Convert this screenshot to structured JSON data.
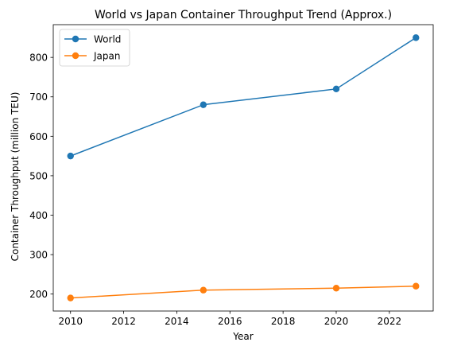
{
  "chart_data": {
    "type": "line",
    "title": "World vs Japan Container Throughput Trend (Approx.)",
    "xlabel": "Year",
    "ylabel": "Container Throughput (million TEU)",
    "x": [
      2010,
      2015,
      2020,
      2023
    ],
    "series": [
      {
        "name": "World",
        "values": [
          550,
          680,
          720,
          850
        ],
        "color": "#1f77b4",
        "marker": "circle"
      },
      {
        "name": "Japan",
        "values": [
          190,
          210,
          215,
          220
        ],
        "color": "#ff7f0e",
        "marker": "circle"
      }
    ],
    "xlim": [
      2009.35,
      2023.65
    ],
    "ylim": [
      157,
      883
    ],
    "xticks": [
      2010,
      2012,
      2014,
      2016,
      2018,
      2020,
      2022
    ],
    "yticks": [
      200,
      300,
      400,
      500,
      600,
      700,
      800
    ],
    "grid": false,
    "legend_position": "top-left"
  }
}
